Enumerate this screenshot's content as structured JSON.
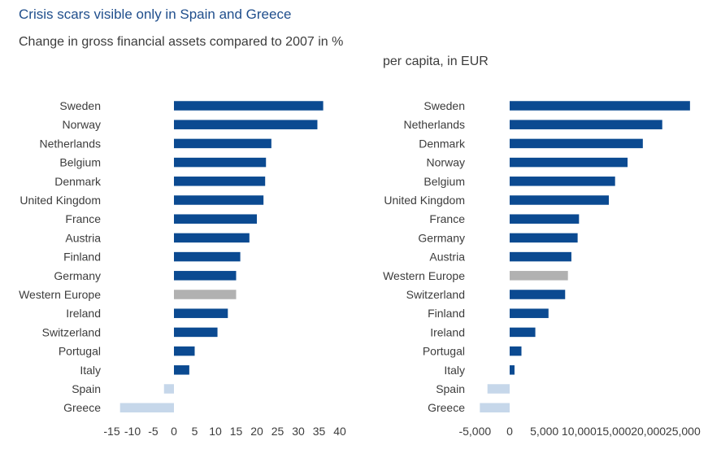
{
  "title": "Crisis scars visible only in Spain and Greece",
  "colors": {
    "bar": "#0b4a91",
    "western_europe": "#b1b1b1",
    "negative": "#c6d7ea",
    "title": "#1f4e8c"
  },
  "chart_data": [
    {
      "type": "bar",
      "orientation": "horizontal",
      "subtitle": "Change in gross financial assets compared to 2007 in %",
      "categories": [
        "Sweden",
        "Norway",
        "Netherlands",
        "Belgium",
        "Denmark",
        "United Kingdom",
        "France",
        "Austria",
        "Finland",
        "Germany",
        "Western Europe",
        "Ireland",
        "Switzerland",
        "Portugal",
        "Italy",
        "Spain",
        "Greece"
      ],
      "values": [
        36,
        34.6,
        23.5,
        22.2,
        22,
        21.6,
        20,
        18.2,
        16,
        15,
        15,
        13,
        10.5,
        5,
        3.7,
        -2.4,
        -13
      ],
      "xlim": [
        -15,
        40
      ],
      "xticks": [
        -15,
        -10,
        -5,
        0,
        5,
        10,
        15,
        20,
        25,
        30,
        35,
        40
      ],
      "xtick_labels": [
        "-15",
        "-10",
        "-5",
        "0",
        "5",
        "10",
        "15",
        "20",
        "25",
        "30",
        "35",
        "40"
      ]
    },
    {
      "type": "bar",
      "orientation": "horizontal",
      "subtitle": "per capita, in EUR",
      "categories": [
        "Sweden",
        "Netherlands",
        "Denmark",
        "Norway",
        "Belgium",
        "United Kingdom",
        "France",
        "Germany",
        "Austria",
        "Western Europe",
        "Switzerland",
        "Finland",
        "Ireland",
        "Portugal",
        "Italy",
        "Spain",
        "Greece"
      ],
      "values": [
        26000,
        22000,
        19200,
        17000,
        15200,
        14300,
        10000,
        9800,
        8900,
        8400,
        8000,
        5600,
        3700,
        1700,
        700,
        -3200,
        -4300
      ],
      "xlim": [
        -5000,
        25000
      ],
      "xticks": [
        -5000,
        0,
        5000,
        10000,
        15000,
        20000,
        25000
      ],
      "xtick_labels": [
        "-5,000",
        "0",
        "5,000",
        "10,000",
        "15,000",
        "20,000",
        "25,000"
      ]
    }
  ]
}
